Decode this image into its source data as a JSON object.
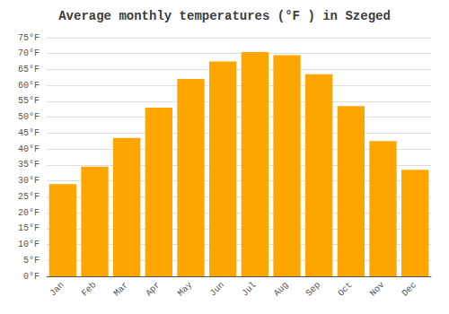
{
  "chart_data": {
    "type": "bar",
    "title": "Average monthly temperatures (°F ) in Szeged",
    "categories": [
      "Jan",
      "Feb",
      "Mar",
      "Apr",
      "May",
      "Jun",
      "Jul",
      "Aug",
      "Sep",
      "Oct",
      "Nov",
      "Dec"
    ],
    "values": [
      29,
      34.5,
      43.5,
      53,
      62,
      67.5,
      70.5,
      69.5,
      63.5,
      53.5,
      42.5,
      33.5
    ],
    "color": "#FFA500",
    "ylim": [
      0,
      75
    ],
    "yticks": [
      {
        "value": 0,
        "label": "0°F"
      },
      {
        "value": 5,
        "label": "5°F"
      },
      {
        "value": 10,
        "label": "10°F"
      },
      {
        "value": 15,
        "label": "15°F"
      },
      {
        "value": 20,
        "label": "20°F"
      },
      {
        "value": 25,
        "label": "25°F"
      },
      {
        "value": 30,
        "label": "30°F"
      },
      {
        "value": 35,
        "label": "35°F"
      },
      {
        "value": 40,
        "label": "40°F"
      },
      {
        "value": 45,
        "label": "45°F"
      },
      {
        "value": 50,
        "label": "50°F"
      },
      {
        "value": 55,
        "label": "55°F"
      },
      {
        "value": 60,
        "label": "60°F"
      },
      {
        "value": 65,
        "label": "65°F"
      },
      {
        "value": 70,
        "label": "70°F"
      },
      {
        "value": 75,
        "label": "75°F"
      }
    ],
    "grid": true
  }
}
